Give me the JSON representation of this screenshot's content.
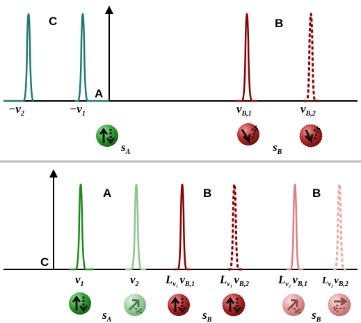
{
  "panel_top": {
    "labels": {
      "C": "C",
      "A": "A",
      "B": "B"
    },
    "ticks": [
      {
        "sign": "−",
        "sym": "ν",
        "sub": "2"
      },
      {
        "sign": "−",
        "sym": "ν",
        "sub": "1"
      },
      {
        "sym": "ν",
        "sub": "B,1"
      },
      {
        "sym": "ν",
        "sub": "B,2"
      }
    ],
    "spin_labels": [
      {
        "sym": "s",
        "sub": "A"
      },
      {
        "sym": "s",
        "sub": "B"
      }
    ]
  },
  "panel_bottom": {
    "labels": {
      "C": "C",
      "A": "A",
      "B1": "B",
      "B2": "B"
    },
    "ticks": [
      {
        "sym": "ν",
        "sub": "1"
      },
      {
        "sym": "ν",
        "sub": "2"
      },
      {
        "pre": "L",
        "pre_sub": "ν₁",
        "sym": "ν",
        "sub": "B,1"
      },
      {
        "pre": "L",
        "pre_sub": "ν₁",
        "sym": "ν",
        "sub": "B,2"
      },
      {
        "pre": "L",
        "pre_sub": "ν₂",
        "sym": "ν",
        "sub": "B,1"
      },
      {
        "pre": "L",
        "pre_sub": "ν₂",
        "sym": "ν",
        "sub": "B,2"
      }
    ],
    "spin_labels": [
      {
        "sym": "s",
        "sub": "A"
      },
      {
        "sym": "s",
        "sub": "B"
      },
      {
        "sym": "s",
        "sub": "B"
      }
    ]
  },
  "colors": {
    "teal": "#1f7a72",
    "dark_red": "#8b0000",
    "green": "#1e8a1e",
    "light_green": "#8cc58c",
    "pink": "#d98080",
    "light_pink": "#e6a8a8",
    "separator": "#bdbdbd"
  }
}
